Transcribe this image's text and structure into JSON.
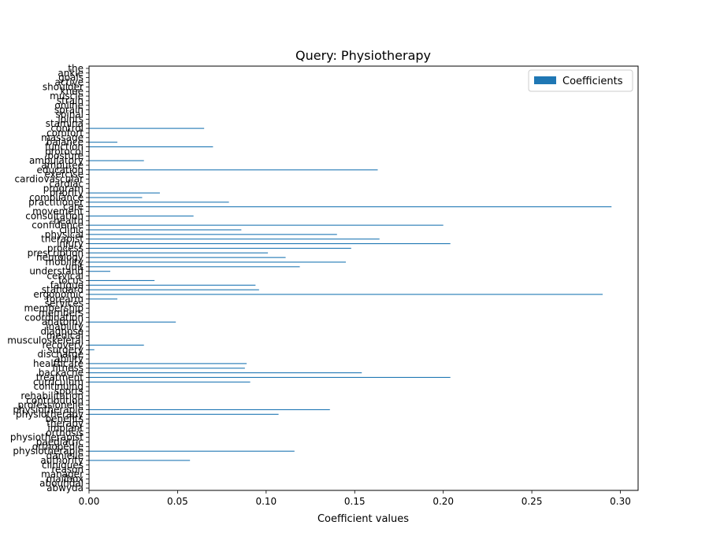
{
  "chart_data": {
    "type": "bar",
    "orientation": "horizontal",
    "title": "Query: Physiotherapy",
    "xlabel": "Coefficient values",
    "ylabel": "",
    "xlim": [
      0,
      0.31
    ],
    "x_ticks": [
      0.0,
      0.05,
      0.1,
      0.15,
      0.2,
      0.25,
      0.3
    ],
    "x_tick_labels": [
      "0.00",
      "0.05",
      "0.10",
      "0.15",
      "0.20",
      "0.25",
      "0.30"
    ],
    "legend": {
      "placement": "top-right",
      "entries": [
        "Coefficients"
      ]
    },
    "bar_color": "#1f77b4",
    "categories": [
      "abwyda",
      "abouhdal",
      "mailbox",
      "manager",
      "reason",
      "cliniques",
      "authority",
      "danielle",
      "physiothérapie",
      "orthopédie",
      "paediatric",
      "physiotherapist",
      "orthosis",
      "implant",
      "therapy",
      "benefits",
      "physiotherapy",
      "physiotherapie",
      "professionelle",
      "contribution",
      "rehabilitation",
      "sports",
      "continuing",
      "curriculum",
      "treatment",
      "backache",
      "fitness",
      "healthcare",
      "ability",
      "discharge",
      "surgery",
      "recovery",
      "musculoskeletal",
      "medical",
      "diagnose",
      "inability",
      "anatomy",
      "coordination",
      "members",
      "membership",
      "services",
      "forearm",
      "ergonomic",
      "standard",
      "fatigue",
      "focus",
      "cervical",
      "understand",
      "unit",
      "mobility",
      "neurology",
      "prescription",
      "process",
      "injury",
      "therapist",
      "physical",
      "clinic",
      "confidence",
      "health",
      "consultation",
      "movement",
      "care",
      "practitioner",
      "compliance",
      "priority",
      "program",
      "cardiac",
      "cardiovascular",
      "exercise",
      "education",
      "amputee",
      "ambulatory",
      "posture",
      "protocol",
      "function",
      "balance",
      "massage",
      "comfort",
      "control",
      "stamina",
      "joints",
      "spinal",
      "sprain",
      "online",
      "strain",
      "muscle",
      "knee",
      "shoulder",
      "active",
      "goals",
      "ankle",
      "the"
    ],
    "values": [
      0,
      0,
      0,
      0,
      0,
      0,
      0.057,
      0,
      0.116,
      0,
      0,
      0,
      0,
      0,
      0,
      0,
      0.107,
      0.136,
      0,
      0,
      0,
      0,
      0,
      0.091,
      0.204,
      0.154,
      0.088,
      0.089,
      0,
      0,
      0.003,
      0.031,
      0,
      0,
      0,
      0,
      0.049,
      0,
      0,
      0,
      0,
      0.016,
      0.29,
      0.096,
      0.094,
      0.037,
      0,
      0.012,
      0.119,
      0.145,
      0.111,
      0.101,
      0.148,
      0.204,
      0.164,
      0.14,
      0.086,
      0.2,
      0,
      0.059,
      0,
      0.295,
      0.079,
      0.03,
      0.04,
      0,
      0,
      0,
      0,
      0.163,
      0,
      0.031,
      0,
      0,
      0.07,
      0.016,
      0,
      0,
      0.065,
      0,
      0,
      0,
      0,
      0,
      0,
      0,
      0,
      0,
      0,
      0,
      0,
      0
    ]
  }
}
